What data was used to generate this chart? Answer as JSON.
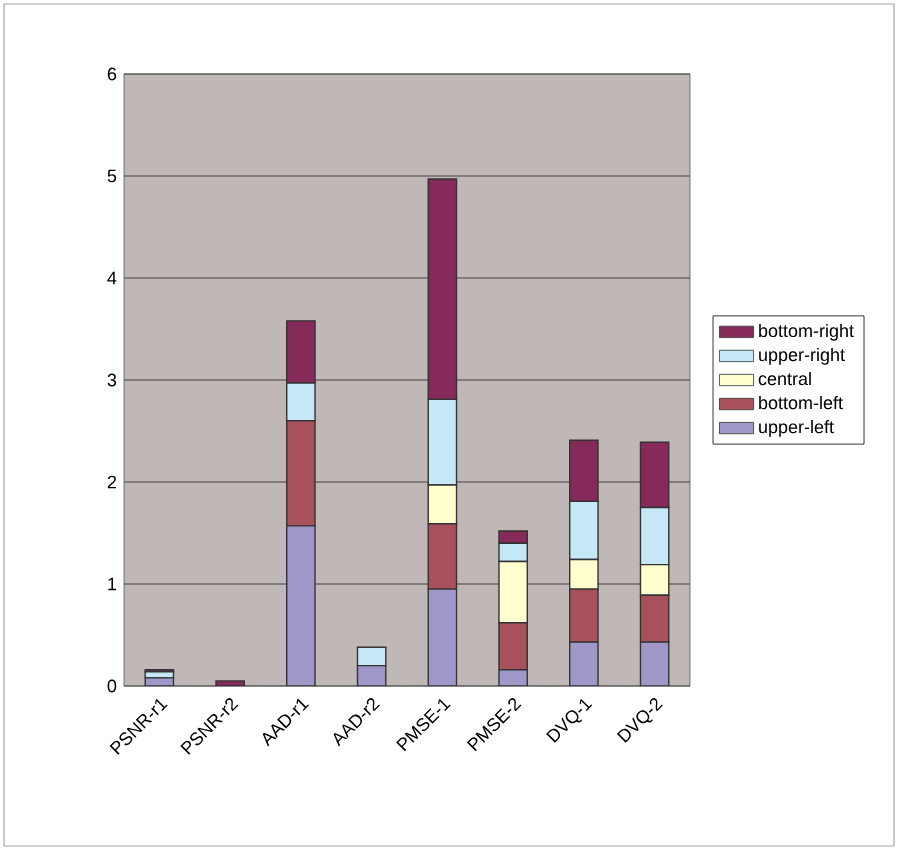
{
  "chart_data": {
    "type": "bar",
    "stacked": true,
    "categories": [
      "PSNR-r1",
      "PSNR-r2",
      "AAD-r1",
      "AAD-r2",
      "PMSE-1",
      "PMSE-2",
      "DVQ-1",
      "DVQ-2"
    ],
    "series": [
      {
        "name": "upper-left",
        "color": "#9f97c8",
        "values": [
          0.08,
          null,
          1.57,
          0.2,
          0.95,
          0.16,
          0.43,
          0.43
        ]
      },
      {
        "name": "bottom-left",
        "color": "#a8505c",
        "values": [
          null,
          null,
          1.03,
          null,
          0.64,
          0.46,
          0.52,
          0.46
        ]
      },
      {
        "name": "central",
        "color": "#ffffd0",
        "values": [
          null,
          null,
          null,
          null,
          0.38,
          0.6,
          0.29,
          0.3
        ]
      },
      {
        "name": "upper-right",
        "color": "#c4e8f6",
        "values": [
          0.06,
          null,
          0.37,
          0.18,
          0.84,
          0.18,
          0.57,
          0.56
        ]
      },
      {
        "name": "bottom-right",
        "color": "#862a5a",
        "values": [
          0.02,
          0.05,
          0.61,
          null,
          2.16,
          0.12,
          0.6,
          0.64
        ]
      }
    ],
    "ylim": [
      0,
      6
    ],
    "yticks": [
      0,
      1,
      2,
      3,
      4,
      5,
      6
    ],
    "grid": "y",
    "legend": "right"
  }
}
